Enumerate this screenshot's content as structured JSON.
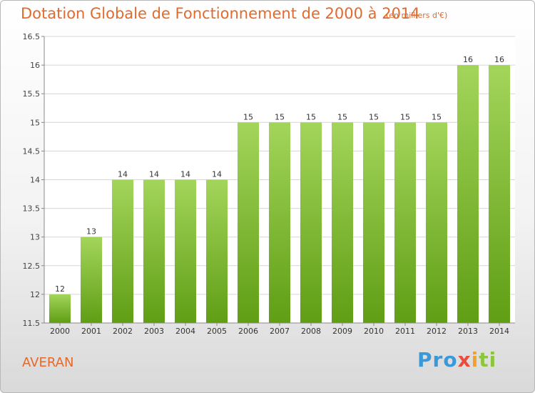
{
  "header": {
    "title": "Dotation Globale de Fonctionnement de 2000 à 2014",
    "subtitle": "(en milliers d'€)"
  },
  "footer": {
    "commune": "AVERAN",
    "logo_parts": [
      "Pro",
      "x",
      "i",
      "ti"
    ]
  },
  "colors": {
    "bar_top": "#a3d55a",
    "bar_bottom": "#5f9e15",
    "title": "#e26a2c"
  },
  "chart_data": {
    "type": "bar",
    "title": "Dotation Globale de Fonctionnement de 2000 à 2014",
    "subtitle": "(en milliers d'€)",
    "xlabel": "",
    "ylabel": "",
    "categories": [
      "2000",
      "2001",
      "2002",
      "2003",
      "2004",
      "2005",
      "2006",
      "2007",
      "2008",
      "2009",
      "2010",
      "2011",
      "2012",
      "2013",
      "2014"
    ],
    "values": [
      12,
      13,
      14,
      14,
      14,
      14,
      15,
      15,
      15,
      15,
      15,
      15,
      15,
      16,
      16
    ],
    "data_labels": [
      "12",
      "13",
      "14",
      "14",
      "14",
      "14",
      "15",
      "15",
      "15",
      "15",
      "15",
      "15",
      "15",
      "16",
      "16"
    ],
    "ylim": [
      11.5,
      16.5
    ],
    "yticks": [
      11.5,
      12,
      12.5,
      13,
      13.5,
      14,
      14.5,
      15,
      15.5,
      16,
      16.5
    ],
    "ytick_labels": [
      "11.5",
      "12",
      "12.5",
      "13",
      "13.5",
      "14",
      "14.5",
      "15",
      "15.5",
      "16",
      "16.5"
    ],
    "grid": true
  }
}
